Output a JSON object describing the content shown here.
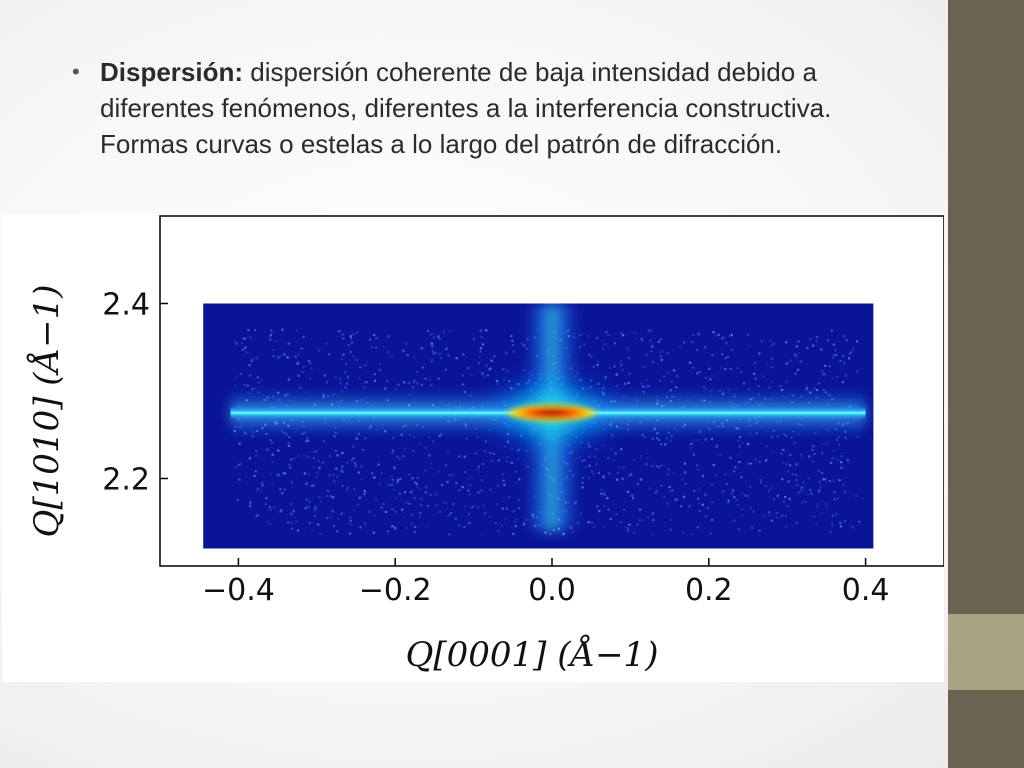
{
  "slide": {
    "bullet": {
      "term": "Dispersión:",
      "text": " dispersión coherente de baja intensidad debido a diferentes fenómenos, diferentes a la interferencia constructiva. Formas curvas o estelas a lo largo del patrón de difracción."
    }
  },
  "theme": {
    "sidebar_dark": "#6b6351",
    "sidebar_light": "#a9a583",
    "heatmap_background": "#0a1496",
    "streak_peak": "#b00000"
  },
  "chart_data": {
    "type": "heatmap",
    "xlabel": "Q[0001] (Å−1)",
    "ylabel": "Q[1010] (Å−1)",
    "xlim": [
      -0.5,
      0.5
    ],
    "ylim": [
      2.1,
      2.5
    ],
    "x_ticks": [
      "−0.4",
      "−0.2",
      "0.0",
      "0.2",
      "0.4"
    ],
    "x_tick_values": [
      -0.4,
      -0.2,
      0.0,
      0.2,
      0.4
    ],
    "y_ticks": [
      "2.4",
      "2.2"
    ],
    "y_tick_values": [
      2.4,
      2.2
    ],
    "data_extent": {
      "x": [
        -0.445,
        0.41
      ],
      "y": [
        2.12,
        2.4
      ]
    },
    "features": [
      {
        "name": "horizontal streak",
        "y_center": 2.275,
        "x_range": [
          -0.41,
          0.4
        ]
      },
      {
        "name": "vertical streak",
        "x_center": 0.0,
        "y_range": [
          2.14,
          2.4
        ]
      },
      {
        "name": "peak",
        "x": 0.0,
        "y": 2.275
      }
    ],
    "grid": false,
    "colormap": "jet"
  }
}
